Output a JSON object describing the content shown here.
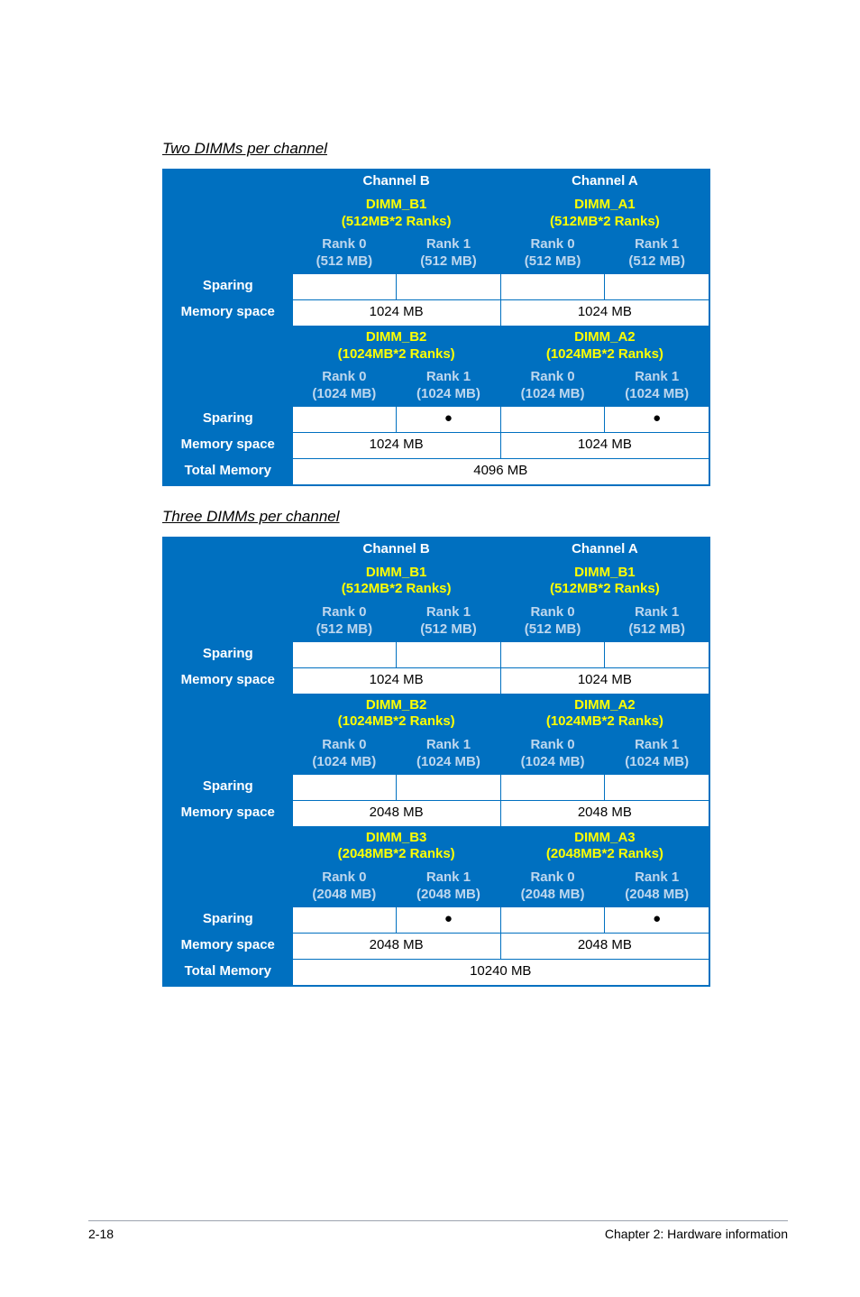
{
  "section1_title": "Two DIMMs per channel",
  "section2_title": "Three DIMMs per channel",
  "channelB": "Channel B",
  "channelA": "Channel A",
  "dimm_b1": "DIMM_B1",
  "dimm_a1": "DIMM_A1",
  "dimm_b2": "DIMM_B2",
  "dimm_a2": "DIMM_A2",
  "dimm_b3": "DIMM_B3",
  "dimm_a3": "DIMM_A3",
  "ranks512": "(512MB*2 Ranks)",
  "ranks1024": "(1024MB*2 Ranks)",
  "ranks2048": "(2048MB*2 Ranks)",
  "rank0": "Rank 0",
  "rank1": "Rank 1",
  "mb512": "(512 MB)",
  "mb1024": "(1024 MB)",
  "mb2048": "(2048 MB)",
  "sparing": "Sparing",
  "memspace": "Memory space",
  "totalmem": "Total Memory",
  "v1024": "1024 MB",
  "v2048": "2048 MB",
  "v4096": "4096 MB",
  "v10240": "10240 MB",
  "dot": "●",
  "footer_left": "2-18",
  "footer_right": "Chapter 2: Hardware information",
  "colors": {
    "primary": "#0070c0",
    "white": "#ffffff",
    "yellow": "#ffff00",
    "light": "#bed7ee"
  }
}
